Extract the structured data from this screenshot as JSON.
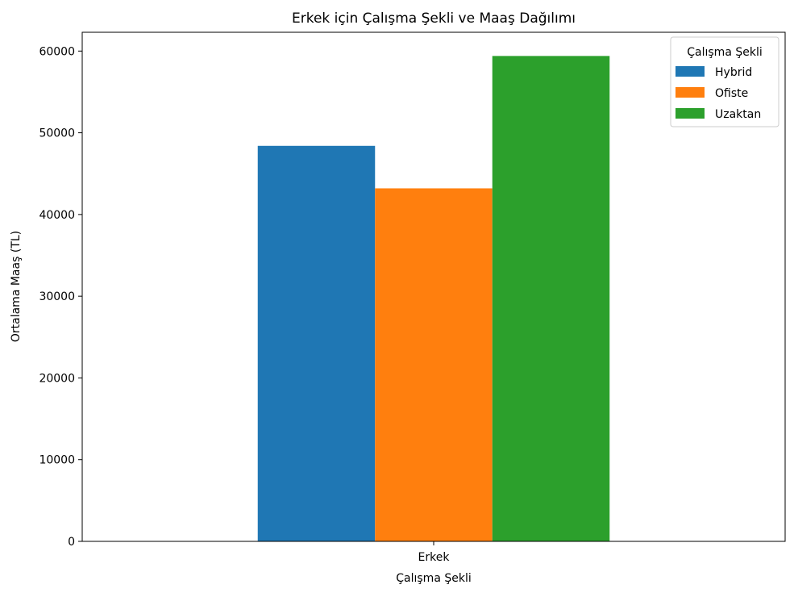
{
  "chart_data": {
    "type": "bar",
    "title": "Erkek için Çalışma Şekli ve Maaş Dağılımı",
    "xlabel": "Çalışma Şekli",
    "ylabel": "Ortalama Maaş (TL)",
    "categories": [
      "Erkek"
    ],
    "series": [
      {
        "name": "Hybrid",
        "values": [
          48400
        ],
        "color": "#1f77b4"
      },
      {
        "name": "Ofiste",
        "values": [
          43200
        ],
        "color": "#ff7f0e"
      },
      {
        "name": "Uzaktan",
        "values": [
          59400
        ],
        "color": "#2ca02c"
      }
    ],
    "ylim": [
      0,
      62300
    ],
    "yticks": [
      0,
      10000,
      20000,
      30000,
      40000,
      50000,
      60000
    ],
    "legend": {
      "title": "Çalışma Şekli",
      "position": "top-right"
    },
    "grid": false
  }
}
